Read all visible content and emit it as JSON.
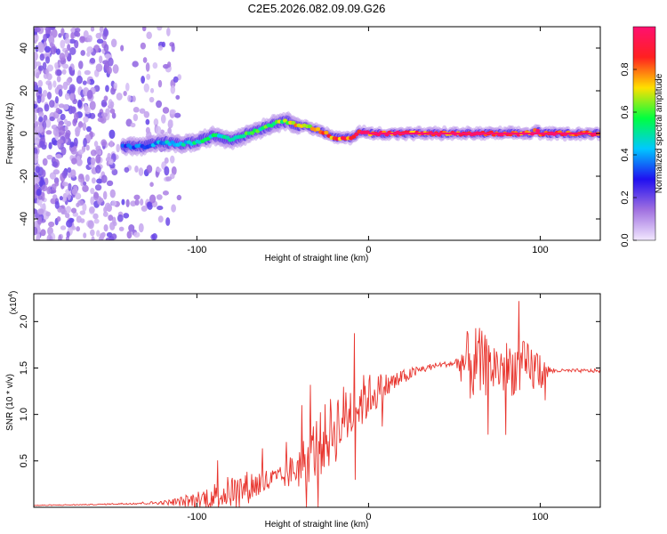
{
  "title": "C2E5.2026.082.09.09.G26",
  "chart_data": [
    {
      "type": "heatmap",
      "xlabel": "Height of straight line (km)",
      "ylabel": "Frequency (Hz)",
      "xlim": [
        -195,
        135
      ],
      "ylim": [
        -50,
        50
      ],
      "xticks": [
        -100,
        0,
        100
      ],
      "yticks": [
        -40,
        -20,
        0,
        20,
        40
      ],
      "colorbar": {
        "label": "Normalized spectral amplitude",
        "ticks": [
          0.0,
          0.2,
          0.4,
          0.6,
          0.8
        ],
        "colors": [
          "#f2e8ff",
          "#a070e0",
          "#2010f0",
          "#00c8ff",
          "#00ff40",
          "#ffe000",
          "#ff2020",
          "#ff1070"
        ]
      },
      "ridge": {
        "x": [
          -143,
          -130,
          -120,
          -110,
          -100,
          -90,
          -80,
          -70,
          -60,
          -50,
          -40,
          -30,
          -25,
          -20,
          -10,
          -5,
          0,
          10,
          30,
          60,
          95,
          98,
          100,
          110,
          135
        ],
        "freq": [
          -6,
          -6,
          -4,
          -5,
          -4,
          -1,
          -3,
          0,
          3,
          6,
          4,
          2,
          0,
          -2,
          -2,
          1,
          0,
          0,
          0,
          0,
          0,
          2,
          0,
          0,
          0
        ],
        "amplitude": [
          0.35,
          0.4,
          0.45,
          0.5,
          0.55,
          0.55,
          0.6,
          0.6,
          0.65,
          0.7,
          0.8,
          0.85,
          0.85,
          0.9,
          0.9,
          0.95,
          0.95,
          0.95,
          0.95,
          0.95,
          0.95,
          0.95,
          1.0,
          1.0,
          1.0
        ]
      },
      "noise_x_range": [
        -195,
        -110
      ],
      "noise_ylim": [
        -50,
        50
      ]
    },
    {
      "type": "line",
      "xlabel": "Height of straight line (km)",
      "ylabel": "SNR (10 * v/v)",
      "scale_label": "(x10",
      "scale_exp": "4",
      "scale_suffix": ")",
      "xlim": [
        -195,
        135
      ],
      "ylim": [
        0,
        2.3
      ],
      "xticks": [
        -100,
        0,
        100
      ],
      "yticks": [
        0.5,
        1.0,
        1.5,
        2.0
      ],
      "ytick_labels": [
        "0.5",
        "1.0",
        "1.5",
        "2.0"
      ],
      "color": "#e8352e",
      "envelope": {
        "x": [
          -195,
          -160,
          -140,
          -120,
          -110,
          -100,
          -90,
          -80,
          -70,
          -60,
          -50,
          -40,
          -30,
          -20,
          -10,
          0,
          10,
          20,
          30,
          40,
          50,
          55,
          60,
          65,
          70,
          80,
          90,
          100,
          105,
          110,
          120,
          135
        ],
        "base": [
          0.02,
          0.03,
          0.04,
          0.05,
          0.06,
          0.08,
          0.12,
          0.17,
          0.22,
          0.27,
          0.32,
          0.45,
          0.65,
          0.85,
          1.05,
          1.2,
          1.3,
          1.4,
          1.48,
          1.53,
          1.55,
          1.55,
          1.55,
          1.53,
          1.52,
          1.5,
          1.5,
          1.48,
          1.47,
          1.47,
          1.47,
          1.47
        ],
        "noise": [
          0.005,
          0.005,
          0.01,
          0.02,
          0.05,
          0.1,
          0.15,
          0.18,
          0.18,
          0.15,
          0.12,
          0.25,
          0.35,
          0.4,
          0.35,
          0.25,
          0.15,
          0.08,
          0.05,
          0.03,
          0.03,
          0.25,
          0.45,
          0.4,
          0.3,
          0.3,
          0.3,
          0.25,
          0.05,
          0.02,
          0.02,
          0.02
        ]
      }
    }
  ]
}
